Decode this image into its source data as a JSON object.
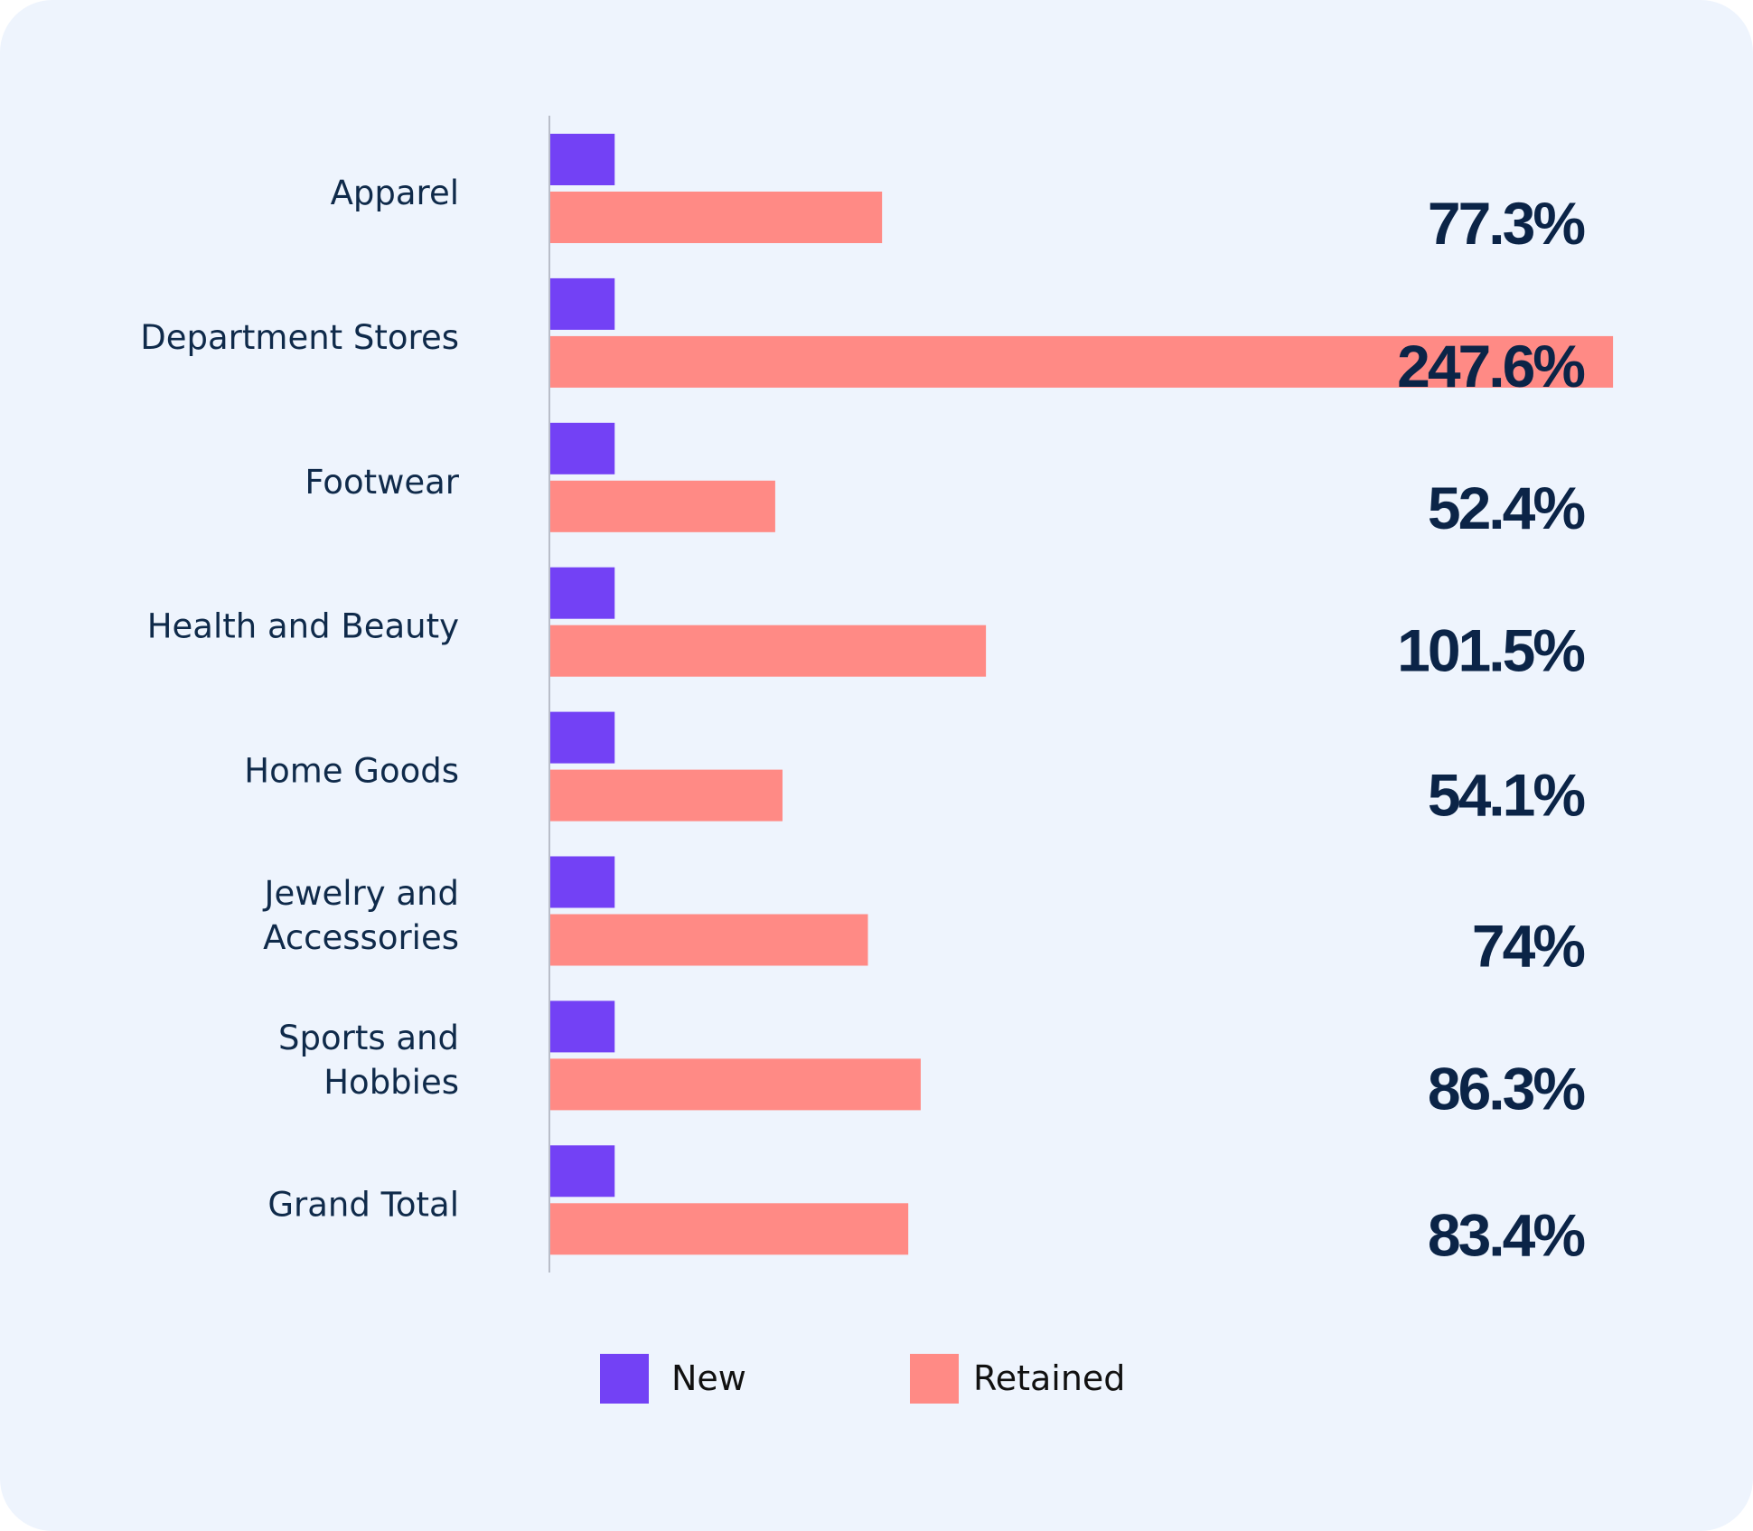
{
  "chart_data": {
    "type": "bar",
    "orientation": "horizontal",
    "title": "",
    "xlabel": "",
    "ylabel": "",
    "categories": [
      [
        "Apparel"
      ],
      [
        "Department Stores"
      ],
      [
        "Footwear"
      ],
      [
        "Health and Beauty"
      ],
      [
        "Home Goods"
      ],
      [
        "Jewelry and",
        "Accessories"
      ],
      [
        "Sports and",
        "Hobbies"
      ],
      [
        "Grand Total"
      ]
    ],
    "series": [
      {
        "name": "New",
        "color": "#7341f5",
        "values": [
          15,
          15,
          15,
          15,
          15,
          15,
          15,
          15
        ]
      },
      {
        "name": "Retained",
        "color": "#ff8a85",
        "values": [
          77.3,
          247.6,
          52.4,
          101.5,
          54.1,
          74,
          86.3,
          83.4
        ]
      }
    ],
    "value_labels": [
      "77.3%",
      "247.6%",
      "52.4%",
      "101.5%",
      "54.1%",
      "74%",
      "86.3%",
      "83.4%"
    ],
    "xlim": [
      0,
      250
    ],
    "grid": false,
    "legend": {
      "position": "bottom",
      "entries": [
        "New",
        "Retained"
      ]
    }
  },
  "colors": {
    "background": "#eef4fd",
    "axis": "#b9bec9",
    "text": "#0f2a4a",
    "value_text": "#0b2447"
  }
}
